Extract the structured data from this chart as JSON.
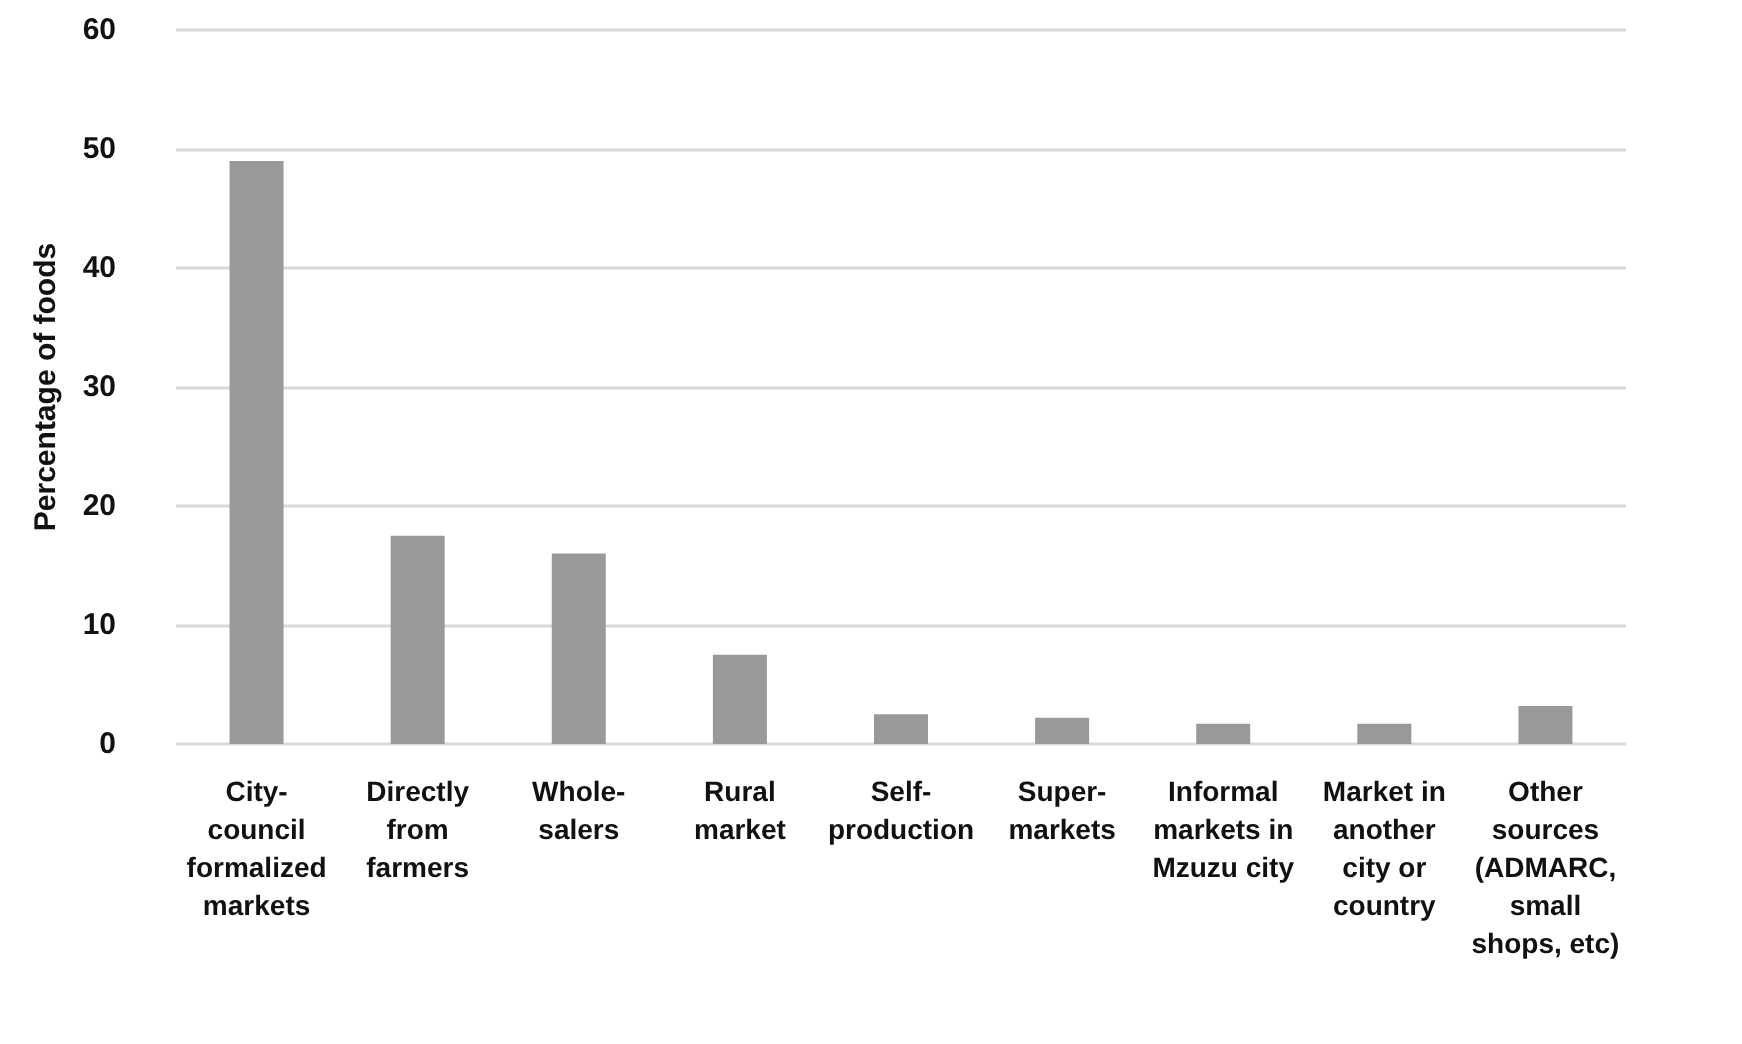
{
  "chart_data": {
    "type": "bar",
    "ylabel": "Percentage of foods",
    "categories": [
      "City-council formalized markets",
      "Directly from farmers",
      "Whole-salers",
      "Rural market",
      "Self-production",
      "Super-markets",
      "Informal markets in Mzuzu city",
      "Market in another city or country",
      "Other sources (ADMARC, small shops, etc)"
    ],
    "values": [
      49,
      17.5,
      16,
      7.5,
      2.5,
      2.2,
      1.7,
      1.7,
      3.2
    ],
    "color": "#999999",
    "ylim": [
      0,
      60
    ],
    "yticks": [
      0,
      10,
      20,
      30,
      40,
      50,
      60
    ],
    "grid": "y"
  }
}
